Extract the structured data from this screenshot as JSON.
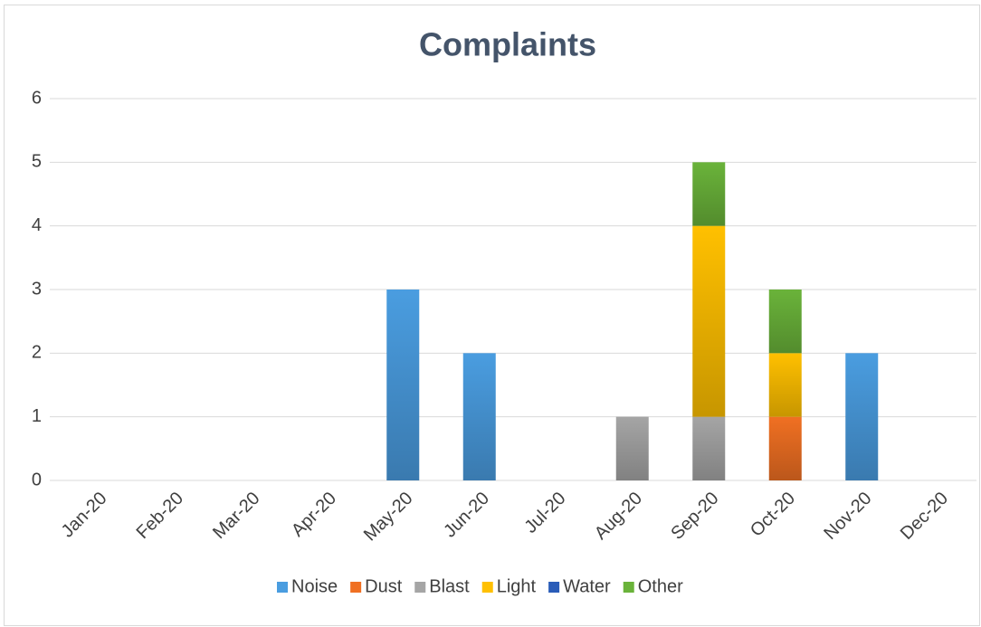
{
  "chart_data": {
    "type": "stacked_bar",
    "title": "Complaints",
    "categories": [
      "Jan-20",
      "Feb-20",
      "Mar-20",
      "Apr-20",
      "May-20",
      "Jun-20",
      "Jul-20",
      "Aug-20",
      "Sep-20",
      "Oct-20",
      "Nov-20",
      "Dec-20"
    ],
    "series": [
      {
        "name": "Noise",
        "color": "#4a9de0",
        "values": [
          0,
          0,
          0,
          0,
          3,
          2,
          0,
          0,
          0,
          0,
          2,
          0
        ]
      },
      {
        "name": "Dust",
        "color": "#f07022",
        "values": [
          0,
          0,
          0,
          0,
          0,
          0,
          0,
          0,
          0,
          1,
          0,
          0
        ]
      },
      {
        "name": "Blast",
        "color": "#a5a5a5",
        "values": [
          0,
          0,
          0,
          0,
          0,
          0,
          0,
          1,
          1,
          0,
          0,
          0
        ]
      },
      {
        "name": "Light",
        "color": "#ffc000",
        "values": [
          0,
          0,
          0,
          0,
          0,
          0,
          0,
          0,
          3,
          1,
          0,
          0
        ]
      },
      {
        "name": "Water",
        "color": "#2a5cb8",
        "values": [
          0,
          0,
          0,
          0,
          0,
          0,
          0,
          0,
          0,
          0,
          0,
          0
        ]
      },
      {
        "name": "Other",
        "color": "#6ab33a",
        "values": [
          0,
          0,
          0,
          0,
          0,
          0,
          0,
          0,
          1,
          1,
          0,
          0
        ]
      }
    ],
    "ylim": [
      0,
      6
    ],
    "yticks": [
      0,
      1,
      2,
      3,
      4,
      5,
      6
    ],
    "grid": true,
    "legend": "bottom"
  }
}
